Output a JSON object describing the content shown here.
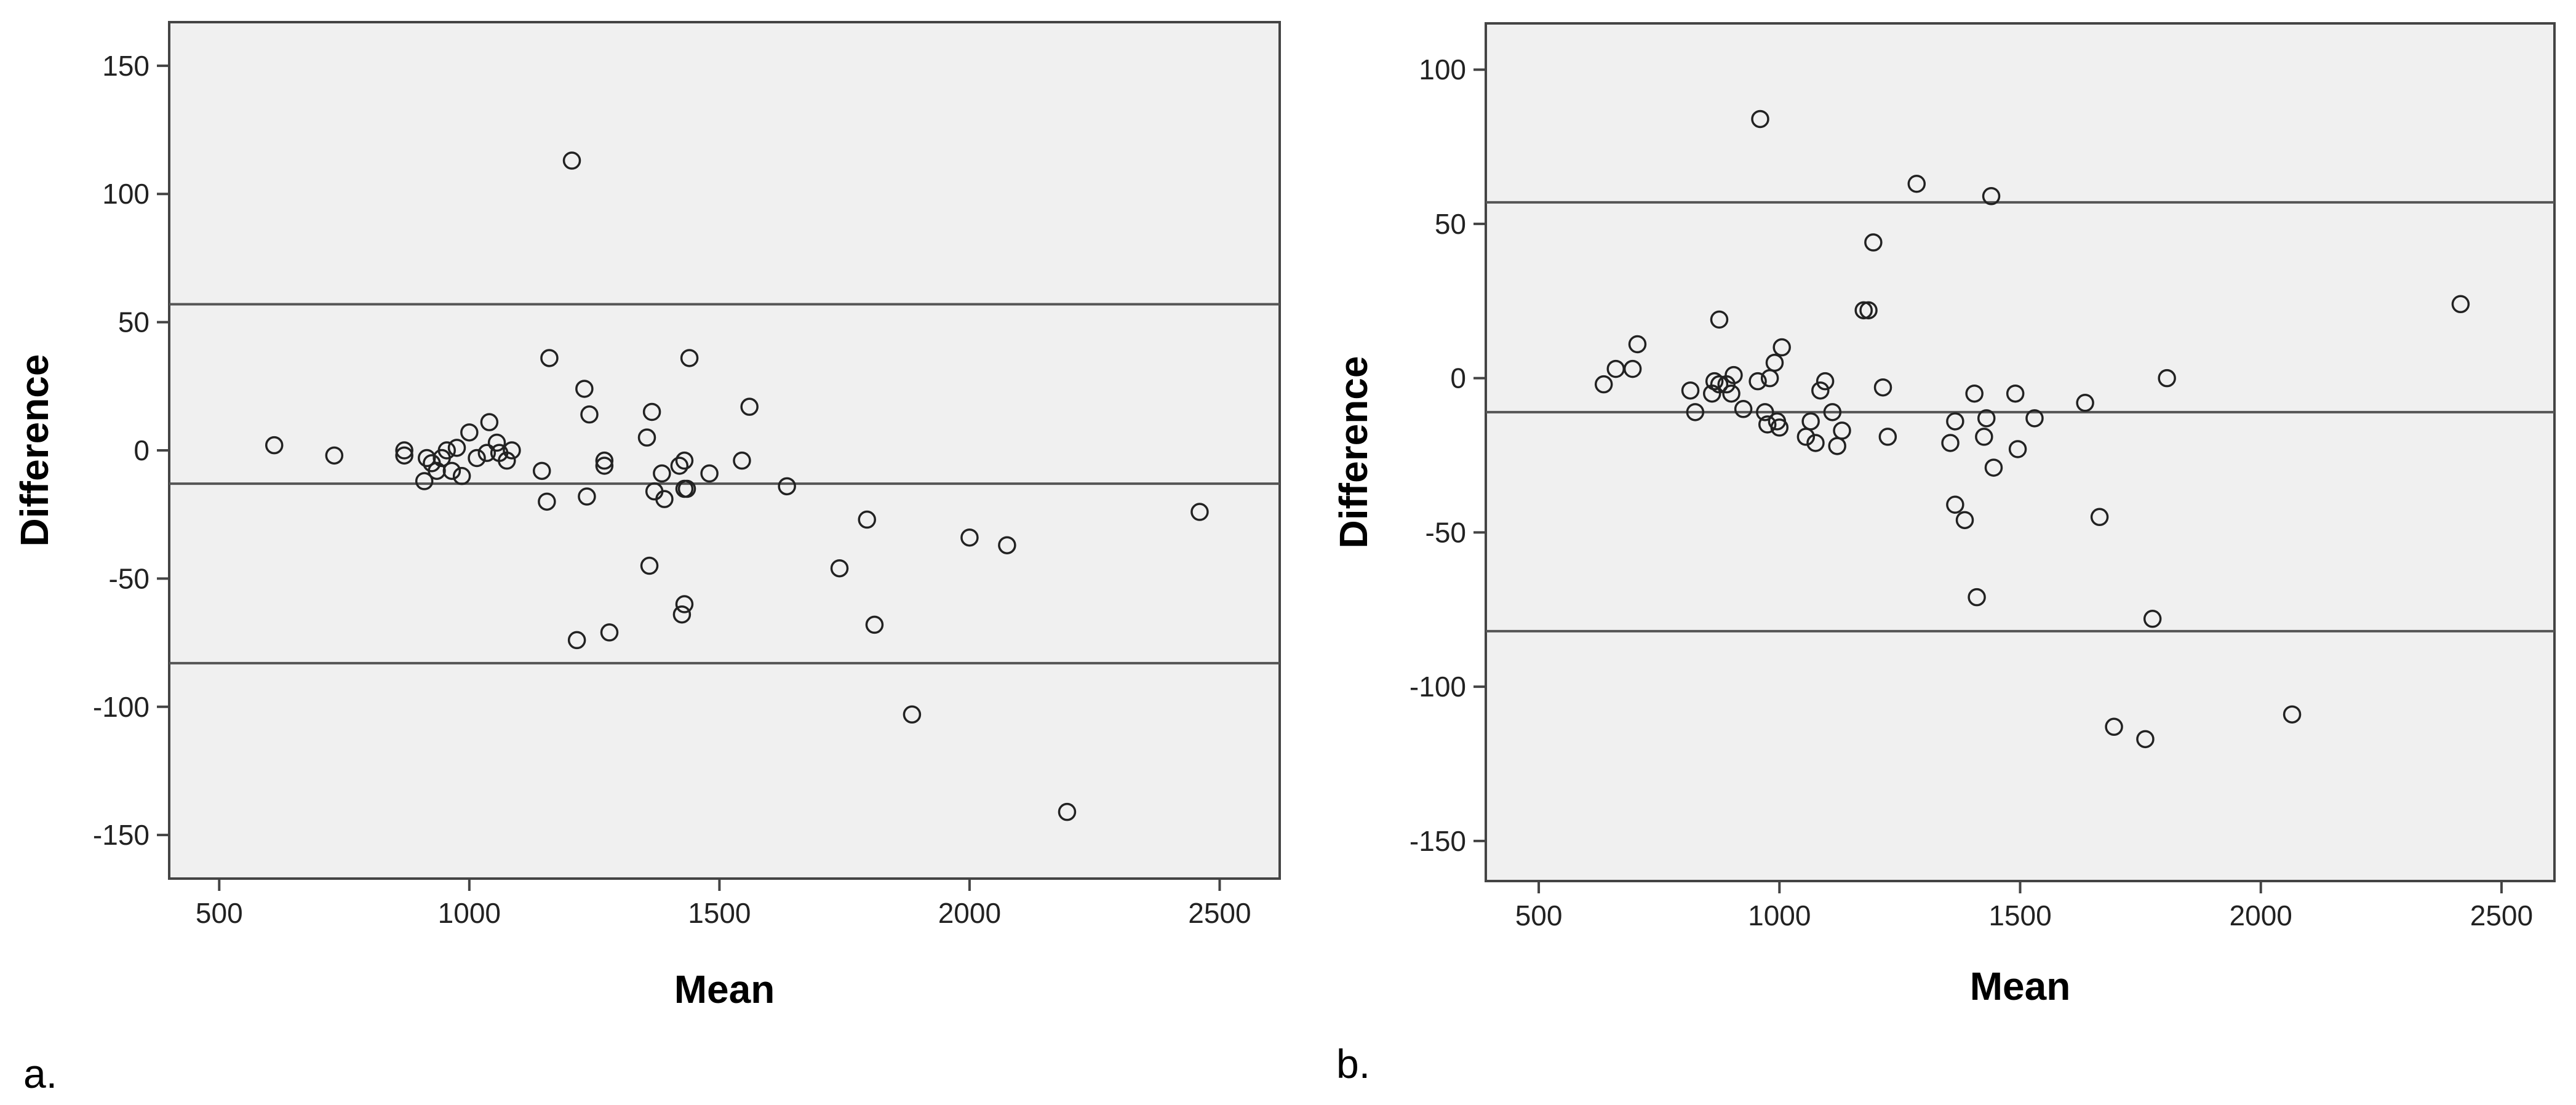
{
  "chart_data": [
    {
      "type": "scatter",
      "panel_label": "a.",
      "title": "",
      "xlabel": "Mean",
      "ylabel": "Difference",
      "xlim": [
        400,
        2620
      ],
      "ylim": [
        -167,
        167
      ],
      "xticks": [
        500,
        1000,
        1500,
        2000,
        2500
      ],
      "yticks": [
        -150,
        -100,
        -50,
        0,
        50,
        100,
        150
      ],
      "reference_lines": [
        57,
        -13,
        -83
      ],
      "grid": false,
      "points": [
        [
          610,
          2
        ],
        [
          730,
          -2
        ],
        [
          870,
          0
        ],
        [
          870,
          -2
        ],
        [
          910,
          -12
        ],
        [
          915,
          -3
        ],
        [
          925,
          -5
        ],
        [
          935,
          -8
        ],
        [
          945,
          -3
        ],
        [
          955,
          0
        ],
        [
          965,
          -8
        ],
        [
          975,
          1
        ],
        [
          985,
          -10
        ],
        [
          1000,
          7
        ],
        [
          1015,
          -3
        ],
        [
          1035,
          -1
        ],
        [
          1040,
          11
        ],
        [
          1055,
          3
        ],
        [
          1060,
          -1
        ],
        [
          1075,
          -4
        ],
        [
          1085,
          0
        ],
        [
          1145,
          -8
        ],
        [
          1155,
          -20
        ],
        [
          1160,
          36
        ],
        [
          1205,
          113
        ],
        [
          1215,
          -74
        ],
        [
          1230,
          24
        ],
        [
          1235,
          -18
        ],
        [
          1240,
          14
        ],
        [
          1270,
          -6
        ],
        [
          1270,
          -4
        ],
        [
          1280,
          -71
        ],
        [
          1355,
          5
        ],
        [
          1360,
          -45
        ],
        [
          1365,
          15
        ],
        [
          1370,
          -16
        ],
        [
          1385,
          -9
        ],
        [
          1390,
          -19
        ],
        [
          1420,
          -6
        ],
        [
          1425,
          -64
        ],
        [
          1430,
          -60
        ],
        [
          1430,
          -15
        ],
        [
          1430,
          -4
        ],
        [
          1435,
          -15
        ],
        [
          1440,
          36
        ],
        [
          1480,
          -9
        ],
        [
          1545,
          -4
        ],
        [
          1560,
          17
        ],
        [
          1635,
          -14
        ],
        [
          1740,
          -46
        ],
        [
          1795,
          -27
        ],
        [
          1810,
          -68
        ],
        [
          1885,
          -103
        ],
        [
          2000,
          -34
        ],
        [
          2075,
          -37
        ],
        [
          2195,
          -141
        ],
        [
          2460,
          -24
        ]
      ]
    },
    {
      "type": "scatter",
      "panel_label": "b.",
      "title": "",
      "xlabel": "Mean",
      "ylabel": "Difference",
      "xlim": [
        390,
        2610
      ],
      "ylim": [
        -163,
        115
      ],
      "xticks": [
        500,
        1000,
        1500,
        2000,
        2500
      ],
      "yticks": [
        -150,
        -100,
        -50,
        0,
        50,
        100
      ],
      "reference_lines": [
        57,
        -11,
        -82
      ],
      "grid": false,
      "points": [
        [
          635,
          -2
        ],
        [
          660,
          3
        ],
        [
          695,
          3
        ],
        [
          705,
          11
        ],
        [
          815,
          -4
        ],
        [
          825,
          -11
        ],
        [
          860,
          -5
        ],
        [
          865,
          -1
        ],
        [
          875,
          -2
        ],
        [
          875,
          19
        ],
        [
          890,
          -2
        ],
        [
          900,
          -5
        ],
        [
          905,
          1
        ],
        [
          925,
          -10
        ],
        [
          955,
          -1
        ],
        [
          960,
          84
        ],
        [
          970,
          -11
        ],
        [
          975,
          -15
        ],
        [
          980,
          0
        ],
        [
          990,
          5
        ],
        [
          995,
          -14
        ],
        [
          1000,
          -16
        ],
        [
          1005,
          10
        ],
        [
          1055,
          -19
        ],
        [
          1065,
          -14
        ],
        [
          1075,
          -21
        ],
        [
          1085,
          -4
        ],
        [
          1095,
          -1
        ],
        [
          1110,
          -11
        ],
        [
          1120,
          -22
        ],
        [
          1130,
          -17
        ],
        [
          1175,
          22
        ],
        [
          1185,
          22
        ],
        [
          1195,
          44
        ],
        [
          1215,
          -3
        ],
        [
          1225,
          -19
        ],
        [
          1285,
          63
        ],
        [
          1355,
          -21
        ],
        [
          1365,
          -14
        ],
        [
          1365,
          -41
        ],
        [
          1385,
          -46
        ],
        [
          1405,
          -5
        ],
        [
          1410,
          -71
        ],
        [
          1425,
          -19
        ],
        [
          1430,
          -13
        ],
        [
          1440,
          59
        ],
        [
          1445,
          -29
        ],
        [
          1490,
          -5
        ],
        [
          1495,
          -23
        ],
        [
          1530,
          -13
        ],
        [
          1635,
          -8
        ],
        [
          1665,
          -45
        ],
        [
          1695,
          -113
        ],
        [
          1760,
          -117
        ],
        [
          1775,
          -78
        ],
        [
          1805,
          0
        ],
        [
          2065,
          -109
        ],
        [
          2415,
          24
        ]
      ]
    }
  ]
}
